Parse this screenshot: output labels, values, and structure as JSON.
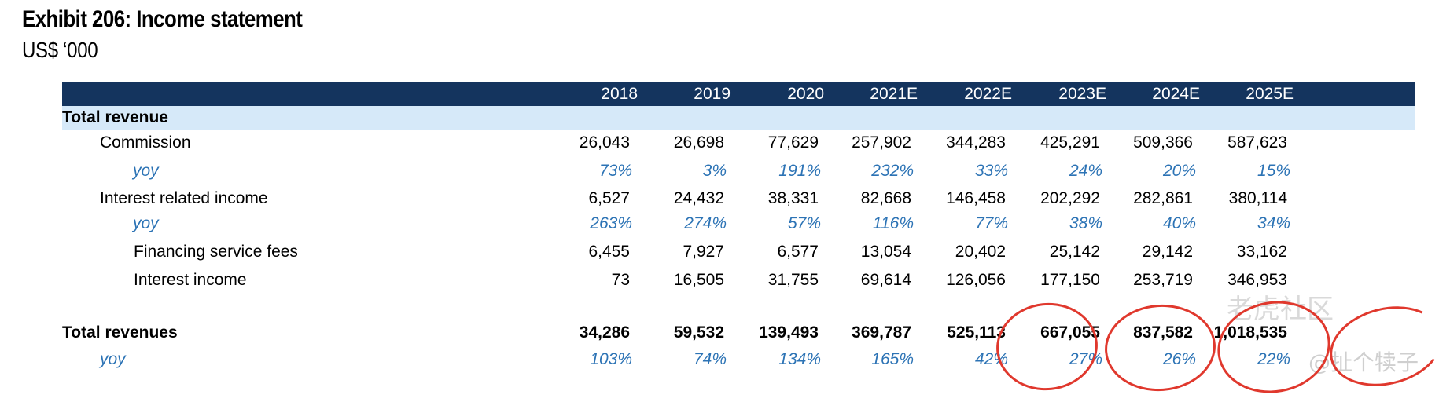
{
  "exhibit": {
    "title": "Exhibit 206: Income statement",
    "subtitle": "US$ ‘000"
  },
  "table": {
    "years": [
      "2018",
      "2019",
      "2020",
      "2021E",
      "2022E",
      "2023E",
      "2024E",
      "2025E"
    ],
    "section_label": "Total revenue",
    "rows": [
      {
        "label": "Commission",
        "values": [
          "26,043",
          "26,698",
          "77,629",
          "257,902",
          "344,283",
          "425,291",
          "509,366",
          "587,623"
        ]
      },
      {
        "label": "yoy",
        "values": [
          "73%",
          "3%",
          "191%",
          "232%",
          "33%",
          "24%",
          "20%",
          "15%"
        ]
      },
      {
        "label": "Interest related income",
        "values": [
          "6,527",
          "24,432",
          "38,331",
          "82,668",
          "146,458",
          "202,292",
          "282,861",
          "380,114"
        ]
      },
      {
        "label": "yoy",
        "values": [
          "263%",
          "274%",
          "57%",
          "116%",
          "77%",
          "38%",
          "40%",
          "34%"
        ]
      },
      {
        "label": "Financing service fees",
        "values": [
          "6,455",
          "7,927",
          "6,577",
          "13,054",
          "20,402",
          "25,142",
          "29,142",
          "33,162"
        ]
      },
      {
        "label": "Interest income",
        "values": [
          "73",
          "16,505",
          "31,755",
          "69,614",
          "126,056",
          "177,150",
          "253,719",
          "346,953"
        ]
      },
      {
        "label": "Total revenues",
        "values": [
          "34,286",
          "59,532",
          "139,493",
          "369,787",
          "525,113",
          "667,055",
          "837,582",
          "1,018,535"
        ]
      },
      {
        "label": "yoy",
        "values": [
          "103%",
          "74%",
          "134%",
          "165%",
          "42%",
          "27%",
          "26%",
          "22%"
        ]
      }
    ]
  },
  "colors": {
    "header_bg": "#14345e",
    "section_bg": "#d6e9f9",
    "yoy_text": "#2c73b5",
    "highlight_ring": "#e0382d"
  },
  "watermark": {
    "brand": "老虎社区",
    "handle": "@扯个犊子"
  }
}
